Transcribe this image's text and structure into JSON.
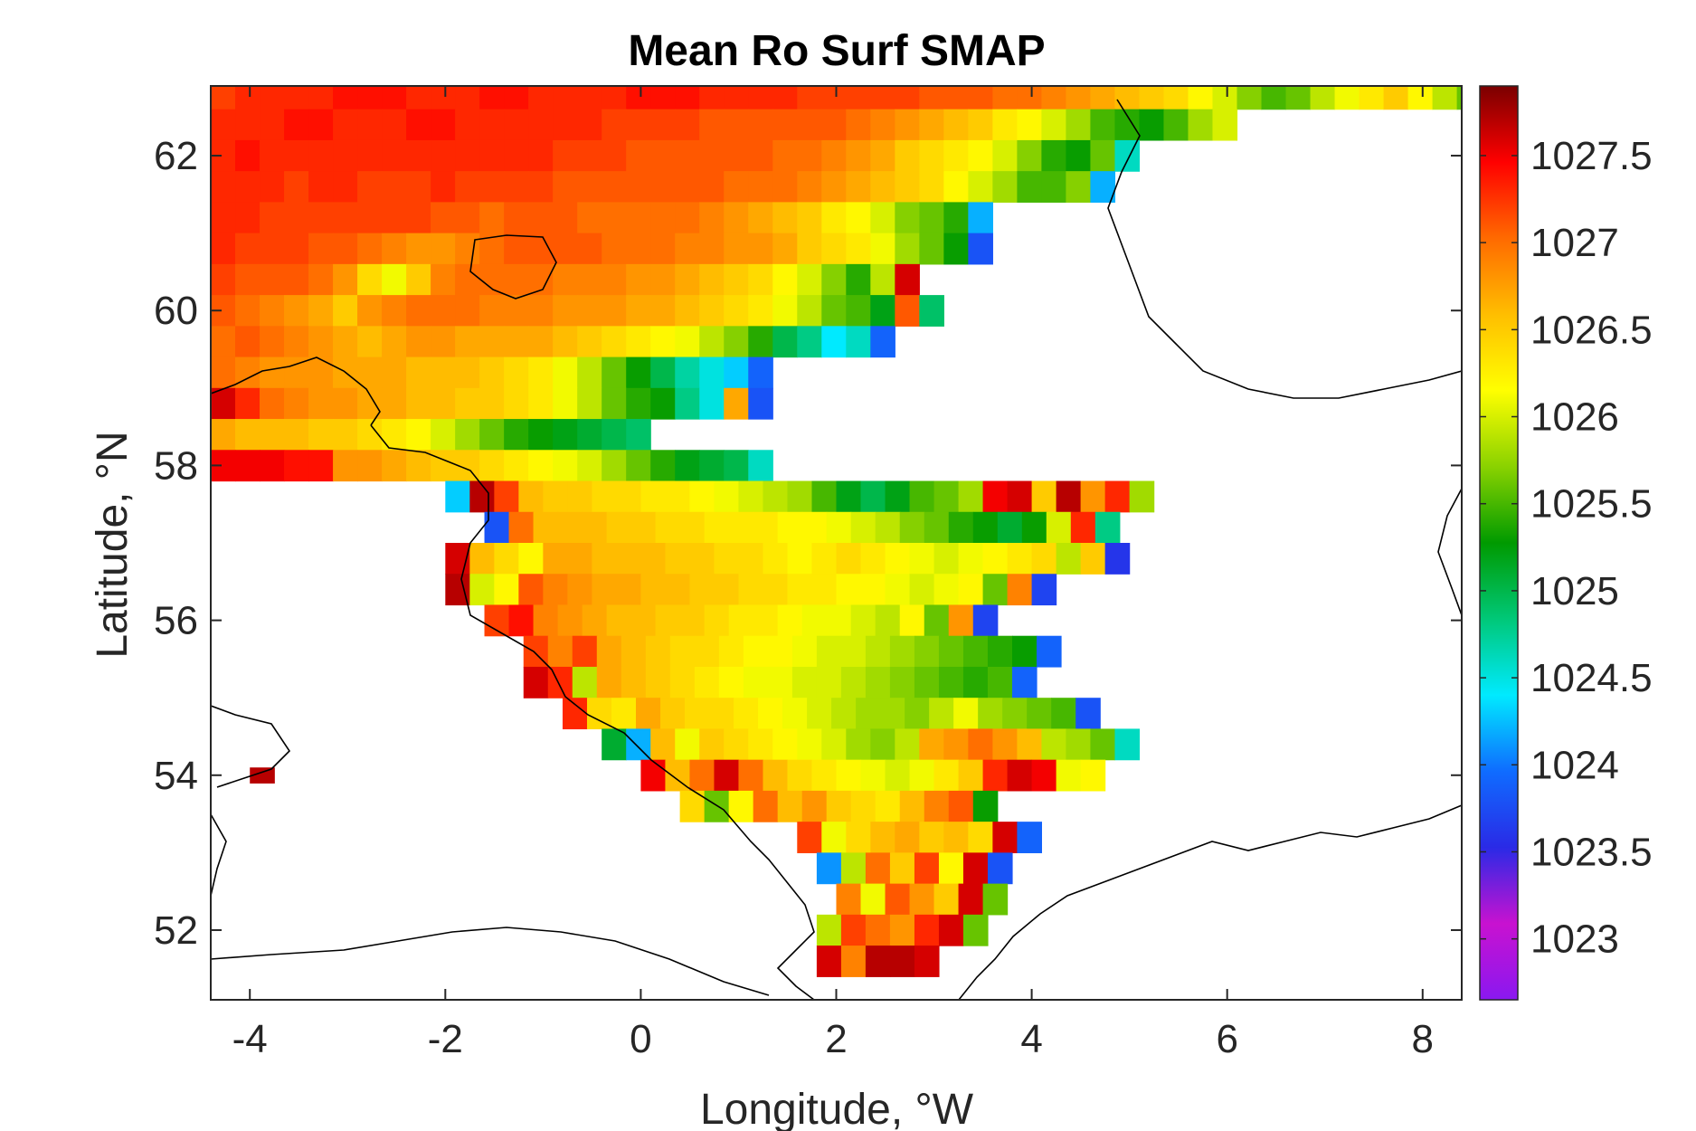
{
  "chart_data": {
    "type": "heatmap",
    "title": "Mean Ro Surf SMAP",
    "xlabel": "Longitude, °W",
    "ylabel": "Latitude, °N",
    "xlim": [
      -4.4,
      8.4
    ],
    "ylim": [
      51.1,
      62.9
    ],
    "xticks": [
      -4,
      -2,
      0,
      2,
      4,
      6,
      8
    ],
    "yticks": [
      52,
      54,
      56,
      58,
      60,
      62
    ],
    "colorbar": {
      "min": 1022.65,
      "max": 1027.9,
      "ticks": [
        1023,
        1023.5,
        1024,
        1024.5,
        1025,
        1025.5,
        1026,
        1026.5,
        1027,
        1027.5
      ],
      "tick_labels": [
        "1023",
        "1023.5",
        "1024",
        "1024.5",
        "1025",
        "1025.5",
        "1026",
        "1026.5",
        "1027",
        "1027.5"
      ],
      "colors": [
        "#8a18f0",
        "#c812d0",
        "#2a2ae6",
        "#0f6cff",
        "#00eaff",
        "#00c878",
        "#009a00",
        "#8ad200",
        "#ffff00",
        "#ffbe00",
        "#ff6a00",
        "#ff0000",
        "#7a0000"
      ]
    },
    "grid": false,
    "legend": "colorbar-right",
    "cell_size": [
      0.25,
      0.2
    ],
    "rows": [
      {
        "lat": 62.8,
        "lon_start": -4.4,
        "values": [
          1027.2,
          1027.3,
          1027.3,
          1027.3,
          1027.3,
          1027.4,
          1027.4,
          1027.4,
          1027.3,
          1027.3,
          1027.3,
          1027.4,
          1027.4,
          1027.3,
          1027.3,
          1027.3,
          1027.3,
          1027.4,
          1027.4,
          1027.4,
          1027.3,
          1027.3,
          1027.3,
          1027.3,
          1027.2,
          1027.2,
          1027.2,
          1027.2,
          1027.2,
          1027.1,
          1027.1,
          1027.1,
          1027.0,
          1027.0,
          1026.9,
          1026.8,
          1026.7,
          1026.6,
          1026.5,
          1026.4,
          1026.2,
          1026.0,
          1025.7,
          1025.5,
          1025.6,
          1025.9,
          1026.1,
          1026.3,
          1026.5,
          1026.2,
          1025.9,
          1025.6,
          1025.1
        ]
      },
      {
        "lat": 62.4,
        "lon_start": -4.4,
        "values": [
          1027.3,
          1027.3,
          1027.3,
          1027.4,
          1027.4,
          1027.3,
          1027.3,
          1027.3,
          1027.4,
          1027.4,
          1027.3,
          1027.3,
          1027.3,
          1027.3,
          1027.3,
          1027.3,
          1027.2,
          1027.2,
          1027.2,
          1027.2,
          1027.1,
          1027.1,
          1027.1,
          1027.1,
          1027.1,
          1027.1,
          1027.0,
          1026.9,
          1026.8,
          1026.7,
          1026.6,
          1026.5,
          1026.3,
          1026.2,
          1026.0,
          1025.8,
          1025.5,
          1025.4,
          1025.3,
          1025.5,
          1025.8,
          1026.0
        ]
      },
      {
        "lat": 62.0,
        "lon_start": -4.4,
        "values": [
          1027.3,
          1027.4,
          1027.3,
          1027.3,
          1027.3,
          1027.3,
          1027.3,
          1027.3,
          1027.3,
          1027.3,
          1027.3,
          1027.3,
          1027.3,
          1027.3,
          1027.2,
          1027.2,
          1027.2,
          1027.1,
          1027.1,
          1027.1,
          1027.1,
          1027.1,
          1027.1,
          1027.0,
          1027.0,
          1026.9,
          1026.8,
          1026.7,
          1026.5,
          1026.4,
          1026.3,
          1026.2,
          1026.0,
          1025.7,
          1025.4,
          1025.3,
          1025.6,
          1024.6
        ]
      },
      {
        "lat": 61.6,
        "lon_start": -4.4,
        "values": [
          1027.3,
          1027.3,
          1027.3,
          1027.2,
          1027.3,
          1027.3,
          1027.2,
          1027.2,
          1027.2,
          1027.3,
          1027.2,
          1027.2,
          1027.2,
          1027.2,
          1027.1,
          1027.1,
          1027.1,
          1027.1,
          1027.1,
          1027.1,
          1027.1,
          1027.0,
          1027.0,
          1027.0,
          1026.9,
          1026.8,
          1026.7,
          1026.6,
          1026.5,
          1026.4,
          1026.2,
          1026.0,
          1025.8,
          1025.5,
          1025.5,
          1025.7,
          1024.2
        ]
      },
      {
        "lat": 61.2,
        "lon_start": -4.4,
        "values": [
          1027.3,
          1027.3,
          1027.2,
          1027.2,
          1027.2,
          1027.2,
          1027.2,
          1027.2,
          1027.2,
          1027.1,
          1027.1,
          1027.0,
          1027.1,
          1027.1,
          1027.1,
          1027.0,
          1027.0,
          1027.0,
          1027.0,
          1027.0,
          1026.9,
          1026.8,
          1026.7,
          1026.6,
          1026.5,
          1026.3,
          1026.2,
          1026.0,
          1025.7,
          1025.6,
          1025.4,
          1024.2
        ]
      },
      {
        "lat": 60.8,
        "lon_start": -4.4,
        "values": [
          1027.3,
          1027.2,
          1027.2,
          1027.2,
          1027.1,
          1027.1,
          1027.0,
          1026.9,
          1026.8,
          1026.8,
          1026.9,
          1027.0,
          1027.1,
          1027.1,
          1027.1,
          1027.1,
          1027.0,
          1027.0,
          1027.0,
          1026.9,
          1026.9,
          1026.8,
          1026.8,
          1026.7,
          1026.5,
          1026.4,
          1026.3,
          1026.1,
          1025.8,
          1025.6,
          1025.3,
          1023.8
        ]
      },
      {
        "lat": 60.4,
        "lon_start": -4.4,
        "values": [
          1027.2,
          1027.1,
          1027.1,
          1027.1,
          1027.0,
          1026.8,
          1026.4,
          1026.1,
          1026.5,
          1026.9,
          1027.0,
          1027.0,
          1027.0,
          1027.0,
          1026.9,
          1026.9,
          1026.9,
          1026.8,
          1026.8,
          1026.7,
          1026.6,
          1026.5,
          1026.4,
          1026.2,
          1026.0,
          1025.7,
          1025.4,
          1025.9,
          1027.6
        ]
      },
      {
        "lat": 60.0,
        "lon_start": -4.4,
        "values": [
          1027.1,
          1027.0,
          1026.9,
          1026.8,
          1026.7,
          1026.5,
          1026.8,
          1026.9,
          1027.0,
          1027.0,
          1027.0,
          1026.9,
          1026.9,
          1026.9,
          1026.8,
          1026.8,
          1026.8,
          1026.7,
          1026.7,
          1026.6,
          1026.5,
          1026.4,
          1026.3,
          1026.1,
          1025.9,
          1025.6,
          1025.5,
          1025.2,
          1027.1,
          1024.9
        ]
      },
      {
        "lat": 59.6,
        "lon_start": -4.4,
        "values": [
          1027.0,
          1027.1,
          1027.0,
          1026.9,
          1026.8,
          1026.7,
          1026.6,
          1026.7,
          1026.8,
          1026.8,
          1026.7,
          1026.7,
          1026.7,
          1026.7,
          1026.6,
          1026.5,
          1026.4,
          1026.3,
          1026.2,
          1026.1,
          1025.9,
          1025.7,
          1025.4,
          1025.0,
          1024.8,
          1024.4,
          1024.6,
          1023.9
        ]
      },
      {
        "lat": 59.2,
        "lon_start": -4.4,
        "values": [
          1027.0,
          1026.9,
          1026.8,
          1026.8,
          1026.8,
          1026.7,
          1026.7,
          1026.7,
          1026.6,
          1026.6,
          1026.6,
          1026.5,
          1026.4,
          1026.3,
          1026.1,
          1025.9,
          1025.6,
          1025.3,
          1025.0,
          1024.7,
          1024.5,
          1024.3,
          1023.9
        ]
      },
      {
        "lat": 58.8,
        "lon_start": -4.4,
        "values": [
          1027.6,
          1027.3,
          1027.0,
          1026.9,
          1026.8,
          1026.8,
          1026.7,
          1026.7,
          1026.6,
          1026.6,
          1026.5,
          1026.5,
          1026.4,
          1026.3,
          1026.1,
          1025.9,
          1025.6,
          1025.4,
          1025.3,
          1024.8,
          1024.5,
          1026.7,
          1023.8
        ]
      },
      {
        "lat": 58.4,
        "lon_start": -4.4,
        "values": [
          1026.7,
          1026.6,
          1026.6,
          1026.6,
          1026.5,
          1026.5,
          1026.4,
          1026.3,
          1026.2,
          1026.0,
          1025.8,
          1025.6,
          1025.4,
          1025.3,
          1025.2,
          1025.1,
          1025.0,
          1024.9
        ]
      },
      {
        "lat": 58.0,
        "lon_start": -4.4,
        "values": [
          1027.5,
          1027.5,
          1027.5,
          1027.4,
          1027.4,
          1026.8,
          1026.8,
          1026.7,
          1026.6,
          1026.5,
          1026.5,
          1026.4,
          1026.3,
          1026.2,
          1026.1,
          1026.0,
          1025.8,
          1025.6,
          1025.4,
          1025.2,
          1025.1,
          1025.0,
          1024.6
        ]
      },
      {
        "lat": 57.6,
        "lon_start": -2.0,
        "values": [
          1024.3,
          1027.7,
          1027.2,
          1026.6,
          1026.5,
          1026.5,
          1026.4,
          1026.4,
          1026.3,
          1026.3,
          1026.2,
          1026.1,
          1026.0,
          1025.9,
          1025.8,
          1025.5,
          1025.2,
          1025.0,
          1025.2,
          1025.5,
          1025.6,
          1025.8,
          1027.5,
          1027.6,
          1026.5,
          1027.7,
          1026.8,
          1027.3,
          1025.8
        ]
      },
      {
        "lat": 57.2,
        "lon_start": -1.6,
        "values": [
          1023.8,
          1027.0,
          1026.6,
          1026.6,
          1026.6,
          1026.5,
          1026.5,
          1026.4,
          1026.4,
          1026.3,
          1026.3,
          1026.3,
          1026.2,
          1026.2,
          1026.1,
          1026.0,
          1025.9,
          1025.7,
          1025.6,
          1025.4,
          1025.3,
          1025.1,
          1025.3,
          1026.0,
          1027.3,
          1024.8
        ]
      },
      {
        "lat": 56.8,
        "lon_start": -2.0,
        "values": [
          1027.6,
          1026.6,
          1026.4,
          1026.2,
          1026.7,
          1026.7,
          1026.6,
          1026.6,
          1026.6,
          1026.5,
          1026.5,
          1026.4,
          1026.4,
          1026.3,
          1026.2,
          1026.3,
          1026.4,
          1026.3,
          1026.2,
          1026.1,
          1026.0,
          1026.1,
          1026.2,
          1026.3,
          1026.4,
          1025.9,
          1026.5,
          1023.6
        ]
      },
      {
        "lat": 56.4,
        "lon_start": -2.0,
        "values": [
          1027.7,
          1026.0,
          1026.2,
          1027.1,
          1026.9,
          1026.8,
          1026.7,
          1026.7,
          1026.6,
          1026.6,
          1026.5,
          1026.5,
          1026.4,
          1026.4,
          1026.3,
          1026.3,
          1026.2,
          1026.2,
          1026.1,
          1026.0,
          1026.1,
          1026.2,
          1025.6,
          1026.9,
          1023.7
        ]
      },
      {
        "lat": 56.0,
        "lon_start": -1.6,
        "values": [
          1027.2,
          1027.4,
          1026.9,
          1026.8,
          1026.7,
          1026.6,
          1026.6,
          1026.5,
          1026.5,
          1026.4,
          1026.3,
          1026.3,
          1026.2,
          1026.1,
          1026.1,
          1026.0,
          1025.9,
          1026.2,
          1025.6,
          1026.8,
          1023.7
        ]
      },
      {
        "lat": 55.6,
        "lon_start": -1.2,
        "values": [
          1027.2,
          1026.9,
          1027.2,
          1026.7,
          1026.6,
          1026.5,
          1026.4,
          1026.4,
          1026.3,
          1026.2,
          1026.2,
          1026.1,
          1026.0,
          1026.0,
          1025.9,
          1025.8,
          1025.7,
          1025.6,
          1025.5,
          1025.4,
          1025.3,
          1023.9
        ]
      },
      {
        "lat": 55.2,
        "lon_start": -1.2,
        "values": [
          1027.6,
          1027.3,
          1025.9,
          1026.7,
          1026.6,
          1026.5,
          1026.4,
          1026.3,
          1026.2,
          1026.1,
          1026.1,
          1026.0,
          1026.0,
          1025.9,
          1025.8,
          1025.7,
          1025.6,
          1025.5,
          1025.4,
          1025.5,
          1023.9
        ]
      },
      {
        "lat": 54.8,
        "lon_start": -0.8,
        "values": [
          1027.3,
          1026.4,
          1026.3,
          1026.7,
          1026.5,
          1026.4,
          1026.4,
          1026.3,
          1026.2,
          1026.1,
          1026.0,
          1025.9,
          1025.8,
          1025.8,
          1025.7,
          1025.9,
          1026.1,
          1025.8,
          1025.7,
          1025.6,
          1025.5,
          1023.8
        ]
      },
      {
        "lat": 54.4,
        "lon_start": -0.4,
        "values": [
          1025.1,
          1024.2,
          1026.6,
          1026.1,
          1026.5,
          1026.4,
          1026.3,
          1026.2,
          1026.1,
          1026.0,
          1025.8,
          1025.7,
          1025.9,
          1026.7,
          1026.8,
          1027.0,
          1026.8,
          1026.6,
          1025.9,
          1025.8,
          1025.6,
          1024.6
        ]
      },
      {
        "lat": 54.0,
        "lon_start": 0.0,
        "values": [
          1027.5,
          1026.6,
          1027.0,
          1027.6,
          1027.0,
          1026.6,
          1026.4,
          1026.3,
          1026.2,
          1026.1,
          1026.0,
          1026.1,
          1026.3,
          1026.5,
          1027.3,
          1027.6,
          1027.5,
          1026.1,
          1026.2
        ]
      },
      {
        "lat": 53.6,
        "lon_start": 0.4,
        "values": [
          1026.4,
          1025.6,
          1026.2,
          1027.0,
          1026.6,
          1026.8,
          1026.5,
          1026.4,
          1026.3,
          1026.6,
          1026.9,
          1027.1,
          1025.3
        ]
      },
      {
        "lat": 53.2,
        "lon_start": 1.6,
        "values": [
          1027.2,
          1026.1,
          1026.4,
          1026.6,
          1026.7,
          1026.5,
          1026.6,
          1026.4,
          1027.6,
          1023.9
        ]
      },
      {
        "lat": 52.8,
        "lon_start": 1.8,
        "values": [
          1024.1,
          1025.9,
          1027.0,
          1026.5,
          1027.2,
          1026.2,
          1027.6,
          1023.8
        ]
      },
      {
        "lat": 52.4,
        "lon_start": 2.0,
        "values": [
          1026.9,
          1026.1,
          1027.1,
          1026.8,
          1026.5,
          1027.6,
          1025.6
        ]
      },
      {
        "lat": 52.0,
        "lon_start": 1.8,
        "values": [
          1025.9,
          1027.2,
          1027.0,
          1026.8,
          1027.3,
          1027.6,
          1025.6
        ]
      },
      {
        "lat": 51.6,
        "lon_start": 1.8,
        "values": [
          1027.6,
          1026.9,
          1027.7,
          1027.7,
          1027.6
        ]
      },
      {
        "lat": 54.0,
        "lon_start": -4.0,
        "values": [
          1027.7
        ]
      }
    ]
  }
}
